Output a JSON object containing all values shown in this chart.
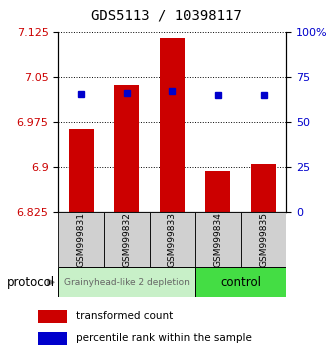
{
  "title": "GDS5113 / 10398117",
  "samples": [
    "GSM999831",
    "GSM999832",
    "GSM999833",
    "GSM999834",
    "GSM999835"
  ],
  "red_values": [
    6.963,
    7.037,
    7.115,
    6.893,
    6.905
  ],
  "blue_values": [
    65.5,
    66.0,
    67.0,
    65.0,
    65.2
  ],
  "base_value": 6.825,
  "ylim_left": [
    6.825,
    7.125
  ],
  "ylim_right": [
    0,
    100
  ],
  "yticks_left": [
    6.825,
    6.9,
    6.975,
    7.05,
    7.125
  ],
  "yticks_right": [
    0,
    25,
    50,
    75,
    100
  ],
  "ytick_labels_left": [
    "6.825",
    "6.9",
    "6.975",
    "7.05",
    "7.125"
  ],
  "ytick_labels_right": [
    "0",
    "25",
    "50",
    "75",
    "100%"
  ],
  "red_color": "#cc0000",
  "blue_color": "#0000cc",
  "bar_width": 0.55,
  "group1_label": "Grainyhead-like 2 depletion",
  "group2_label": "control",
  "group1_color": "#c8f0c8",
  "group2_color": "#44dd44",
  "protocol_label": "protocol",
  "legend_red": "transformed count",
  "legend_blue": "percentile rank within the sample",
  "tick_fontsize": 8,
  "title_fontsize": 10,
  "sample_label_fontsize": 6.5,
  "group_label_fontsize_1": 6.5,
  "group_label_fontsize_2": 8.5
}
